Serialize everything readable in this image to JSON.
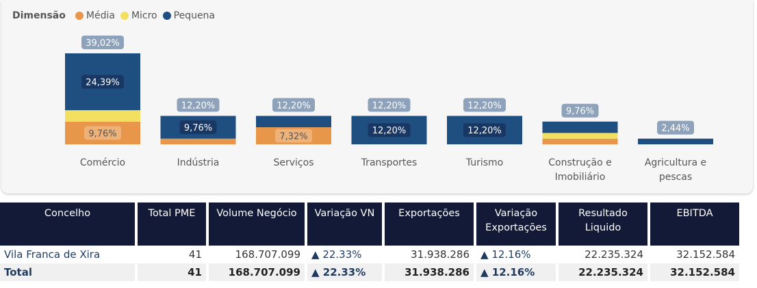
{
  "chart_data": {
    "type": "bar",
    "stacked": true,
    "legend_title": "Dimensão",
    "legend_position": "top-left",
    "categories": [
      "Comércio",
      "Indústria",
      "Serviços",
      "Transportes",
      "Turismo",
      "Construção e Imobiliário",
      "Agricultura e pescas"
    ],
    "category_lines": [
      [
        "Comércio"
      ],
      [
        "Indústria"
      ],
      [
        "Serviços"
      ],
      [
        "Transportes"
      ],
      [
        "Turismo"
      ],
      [
        "Construção e",
        "Imobiliário"
      ],
      [
        "Agricultura e",
        "pescas"
      ]
    ],
    "series": [
      {
        "name": "Média",
        "color": "#e8974a",
        "values": [
          9.76,
          2.44,
          7.32,
          0,
          0,
          2.44,
          0
        ],
        "labels": [
          "9,76%",
          "",
          "7,32%",
          "",
          "",
          "",
          ""
        ]
      },
      {
        "name": "Micro",
        "color": "#f3e061",
        "values": [
          4.88,
          0,
          0,
          0,
          0,
          2.44,
          0
        ],
        "labels": [
          "",
          "",
          "",
          "",
          "",
          "",
          ""
        ]
      },
      {
        "name": "Pequena",
        "color": "#1f4e80",
        "values": [
          24.39,
          9.76,
          4.88,
          12.2,
          12.2,
          4.88,
          2.44
        ],
        "labels": [
          "24,39%",
          "9,76%",
          "",
          "12,20%",
          "12,20%",
          "",
          ""
        ]
      }
    ],
    "totals": [
      "39,02%",
      "12,20%",
      "12,20%",
      "12,20%",
      "12,20%",
      "9,76%",
      "2,44%"
    ],
    "ylim": [
      0,
      40
    ],
    "grid": false
  },
  "table": {
    "headers": [
      [
        "Concelho"
      ],
      [
        "Total PME"
      ],
      [
        "Volume Negócio"
      ],
      [
        "Variação VN"
      ],
      [
        "Exportações"
      ],
      [
        "Variação",
        "Exportações"
      ],
      [
        "Resultado",
        "Liquido"
      ],
      [
        "EBITDA"
      ]
    ],
    "rows": [
      {
        "concelho": "Vila Franca de Xira",
        "total_pme": "41",
        "volume": "168.707.099",
        "var_vn": "22.33%",
        "export": "31.938.286",
        "var_exp": "12.16%",
        "resultado": "22.235.324",
        "ebitda": "32.152.584"
      }
    ],
    "total": {
      "concelho": "Total",
      "total_pme": "41",
      "volume": "168.707.099",
      "var_vn": "22.33%",
      "export": "31.938.286",
      "var_exp": "12.16%",
      "resultado": "22.235.324",
      "ebitda": "32.152.584"
    },
    "up_arrow": "▲",
    "up_color": "#3a8a3a"
  }
}
